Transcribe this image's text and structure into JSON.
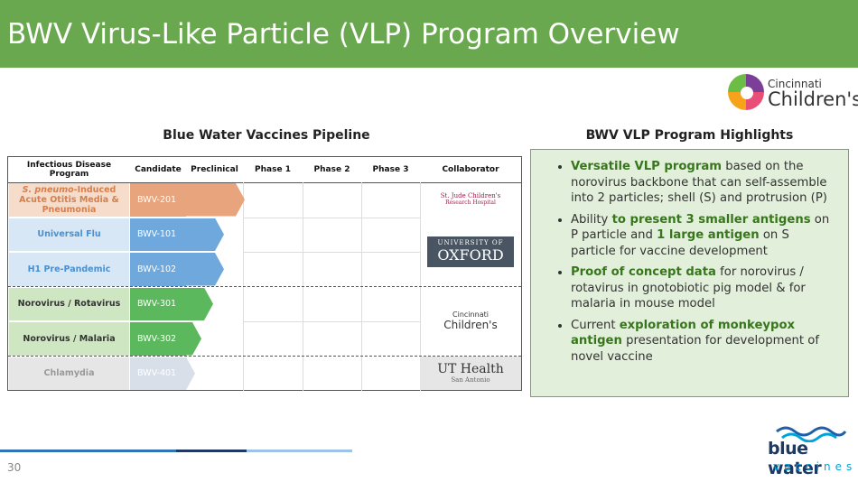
{
  "header": {
    "title": "BWV Virus-Like Particle (VLP) Program Overview"
  },
  "logo_top": {
    "line1": "Cincinnati",
    "line2": "Children's"
  },
  "pipeline": {
    "heading": "Blue Water Vaccines Pipeline",
    "columns": [
      "Infectious Disease Program",
      "Candidate",
      "Preclinical",
      "Phase 1",
      "Phase 2",
      "Phase 3",
      "Collaborator"
    ],
    "rows": [
      {
        "program": [
          {
            "text": "S. pneumo",
            "italic": true
          },
          {
            "text": "-Induced Acute Otitis Media & Pneumonia"
          }
        ],
        "candidate": "BWV-201"
      },
      {
        "program": [
          {
            "text": "Universal Flu"
          }
        ],
        "candidate": "BWV-101"
      },
      {
        "program": [
          {
            "text": "H1 Pre-Pandemic"
          }
        ],
        "candidate": "BWV-102"
      },
      {
        "program": [
          {
            "text": "Norovirus / Rotavirus"
          }
        ],
        "candidate": "BWV-301"
      },
      {
        "program": [
          {
            "text": "Norovirus / Malaria"
          }
        ],
        "candidate": "BWV-302"
      },
      {
        "program": [
          {
            "text": "Chlamydia"
          }
        ],
        "candidate": "BWV-401"
      }
    ],
    "collaborators": [
      {
        "lines": [
          "St. Jude Children's",
          "Research Hospital"
        ]
      },
      {
        "lines": [
          "UNIVERSITY OF",
          "OXFORD"
        ]
      },
      {
        "lines": [
          "Cincinnati",
          "Children's"
        ]
      },
      {
        "lines": [
          "UT Health",
          "San Antonio"
        ]
      }
    ]
  },
  "highlights": {
    "heading": "BWV VLP Program Highlights",
    "bullets": [
      [
        {
          "text": "Versatile VLP program",
          "bold": true
        },
        {
          "text": " based on the norovirus backbone that can self-assemble into 2 particles; shell (S) and protrusion (P)"
        }
      ],
      [
        {
          "text": "Ability "
        },
        {
          "text": "to present 3 smaller antigens",
          "bold": true
        },
        {
          "text": " on P particle and "
        },
        {
          "text": "1 large antigen",
          "bold": true
        },
        {
          "text": " on S particle for vaccine development"
        }
      ],
      [
        {
          "text": "Proof of concept data",
          "bold": true
        },
        {
          "text": " for norovirus / rotavirus in gnotobiotic pig model & for malaria in mouse model"
        }
      ],
      [
        {
          "text": "Current "
        },
        {
          "text": "exploration of monkeypox antigen",
          "bold": true
        },
        {
          "text": " presentation for development of novel vaccine"
        }
      ]
    ]
  },
  "footer": {
    "page_number": "30",
    "logo": {
      "line1": "blue water",
      "line2": "vaccines"
    }
  }
}
